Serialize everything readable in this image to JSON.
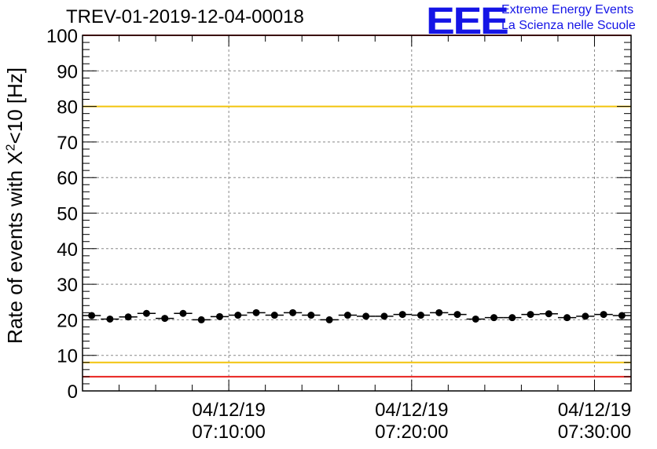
{
  "title": "TREV-01-2019-12-04-00018",
  "logo": {
    "mark": "EEE",
    "line1": "Extreme Energy Events",
    "line2": "La Scienza nelle Scuole"
  },
  "colors": {
    "limit_red": "#e8231f",
    "limit_yellow": "#f2c40c",
    "logo_blue": "#1414e6",
    "marker": "#000000",
    "grid": "#888888"
  },
  "chart_data": {
    "type": "scatter",
    "title": "TREV-01-2019-12-04-00018",
    "ylabel_main": "Rate of events with X",
    "ylabel_sup": "2",
    "ylabel_tail": "<10 [Hz]",
    "xlabel": "",
    "ylim": [
      0,
      100
    ],
    "yticks": [
      "0",
      "10",
      "20",
      "30",
      "40",
      "50",
      "60",
      "70",
      "80",
      "90",
      "100"
    ],
    "xlim_minutes": [
      0,
      30
    ],
    "xtick_minutes": [
      8,
      18,
      28
    ],
    "xtick_labels": [
      {
        "date": "04/12/19",
        "time": "07:10:00"
      },
      {
        "date": "04/12/19",
        "time": "07:20:00"
      },
      {
        "date": "04/12/19",
        "time": "07:30:00"
      }
    ],
    "bin_width_minutes": 1,
    "x": [
      0.5,
      1.5,
      2.5,
      3.5,
      4.5,
      5.5,
      6.5,
      7.5,
      8.5,
      9.5,
      10.5,
      11.5,
      12.5,
      13.5,
      14.5,
      15.5,
      16.5,
      17.5,
      18.5,
      19.5,
      20.5,
      21.5,
      22.5,
      23.5,
      24.5,
      25.5,
      26.5,
      27.5,
      28.5,
      29.5
    ],
    "values": [
      21.2,
      20.2,
      20.8,
      21.8,
      20.4,
      21.8,
      20.0,
      20.9,
      21.3,
      22.0,
      21.3,
      22.0,
      21.3,
      20.0,
      21.3,
      21.0,
      21.0,
      21.5,
      21.3,
      22.0,
      21.5,
      20.2,
      20.6,
      20.6,
      21.5,
      21.7,
      20.6,
      21.0,
      21.5,
      21.2
    ],
    "limit_lines": [
      {
        "name": "red-upper",
        "value": 100,
        "color": "#e8231f"
      },
      {
        "name": "yellow-upper",
        "value": 80,
        "color": "#f2c40c"
      },
      {
        "name": "yellow-lower",
        "value": 8,
        "color": "#f2c40c"
      },
      {
        "name": "red-lower",
        "value": 4,
        "color": "#e8231f"
      }
    ],
    "grid": true
  }
}
